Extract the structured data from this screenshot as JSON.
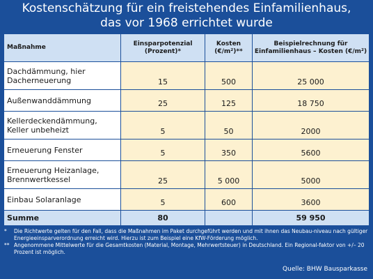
{
  "title": {
    "line1": "Kostenschätzung für ein freistehendes Einfamilienhaus,",
    "line2": "das vor 1968 errichtet wurde"
  },
  "table": {
    "headers": [
      "Maßnahme",
      "Einsparpotenzial\n(Prozent)*",
      "Kosten\n(€/m²)**",
      "Beispielrechnung für\nEinfamilienhaus – Kosten (€/m²)"
    ],
    "rows": [
      {
        "name": "Dachdämmung, hier\nDacherneuerung",
        "savings": "15",
        "cost": "500",
        "example": "25 000"
      },
      {
        "name": "Außenwanddämmung",
        "savings": "25",
        "cost": "125",
        "example": "18 750"
      },
      {
        "name": "Kellerdeckendämmung,\nKeller unbeheizt",
        "savings": "5",
        "cost": "50",
        "example": "2000"
      },
      {
        "name": "Erneuerung Fenster",
        "savings": "5",
        "cost": "350",
        "example": "5600"
      },
      {
        "name": "Erneuerung Heizanlage,\nBrennwertkessel",
        "savings": "25",
        "cost": "5 000",
        "example": "5000"
      },
      {
        "name": "Einbau Solaranlage",
        "savings": "5",
        "cost": "600",
        "example": "3600"
      }
    ],
    "sum": {
      "label": "Summe",
      "savings": "80",
      "cost": "",
      "example": "59 950"
    }
  },
  "footnotes": [
    {
      "mark": "*",
      "text": "Die Richtwerte gelten für den Fall, dass die Maßnahmen im Paket durchgeführt werden und mit ihnen das Neubau-niveau nach gültiger Energieeinsparverordnung erreicht wird. Hierzu ist zum Beispiel eine KfW-Förderung möglich."
    },
    {
      "mark": "**",
      "text": "Angenommene Mittelwerte für die Gesamtkosten (Material, Montage, Mehrwertsteuer) in Deutschland. Ein Regional-faktor von +/– 20 Prozent ist möglich."
    }
  ],
  "source": "Quelle: BHW Bausparkasse"
}
